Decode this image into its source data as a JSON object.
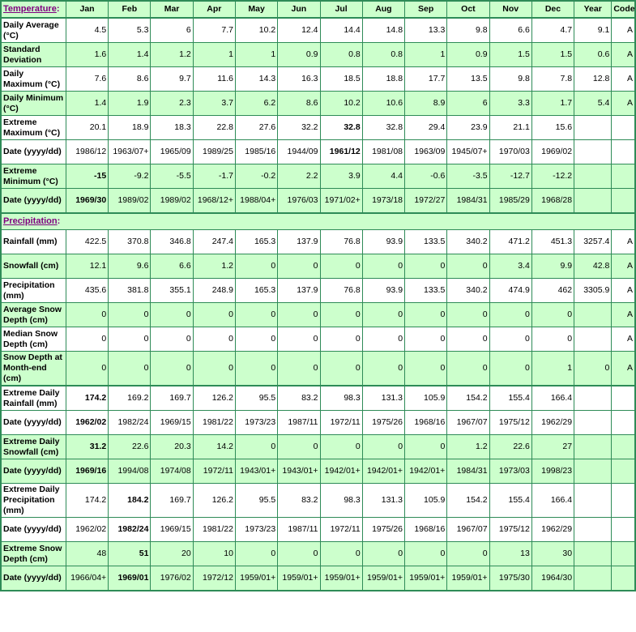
{
  "colors": {
    "cell_green": "#CCFFCC",
    "border_green": "#2E8B57",
    "label_blue": "#0000CC",
    "section_purple": "#800080",
    "value_black": "#000000"
  },
  "header": {
    "temperature_section": {
      "link_text": "Temperature",
      "colon": ":"
    },
    "precipitation_section": {
      "link_text": "Precipitation",
      "colon": ":"
    },
    "months": [
      "Jan",
      "Feb",
      "Mar",
      "Apr",
      "May",
      "Jun",
      "Jul",
      "Aug",
      "Sep",
      "Oct",
      "Nov",
      "Dec"
    ],
    "year": "Year",
    "code": "Code"
  },
  "temperature_rows": [
    {
      "label": "Daily Average (°C)",
      "bg": "w",
      "bold": [],
      "values": [
        "4.5",
        "5.3",
        "6",
        "7.7",
        "10.2",
        "12.4",
        "14.4",
        "14.8",
        "13.3",
        "9.8",
        "6.6",
        "4.7",
        "9.1",
        "A"
      ]
    },
    {
      "label": "Standard Deviation",
      "bg": "g",
      "bold": [],
      "values": [
        "1.6",
        "1.4",
        "1.2",
        "1",
        "1",
        "0.9",
        "0.8",
        "0.8",
        "1",
        "0.9",
        "1.5",
        "1.5",
        "0.6",
        "A"
      ]
    },
    {
      "label": "Daily Maximum (°C)",
      "bg": "w",
      "bold": [],
      "values": [
        "7.6",
        "8.6",
        "9.7",
        "11.6",
        "14.3",
        "16.3",
        "18.5",
        "18.8",
        "17.7",
        "13.5",
        "9.8",
        "7.8",
        "12.8",
        "A"
      ]
    },
    {
      "label": "Daily Minimum (°C)",
      "bg": "g",
      "bold": [],
      "values": [
        "1.4",
        "1.9",
        "2.3",
        "3.7",
        "6.2",
        "8.6",
        "10.2",
        "10.6",
        "8.9",
        "6",
        "3.3",
        "1.7",
        "5.4",
        "A"
      ]
    },
    {
      "label": "Extreme Maximum (°C)",
      "bg": "w",
      "bold": [
        6
      ],
      "values": [
        "20.1",
        "18.9",
        "18.3",
        "22.8",
        "27.6",
        "32.2",
        "32.8",
        "32.8",
        "29.4",
        "23.9",
        "21.1",
        "15.6",
        "",
        ""
      ]
    },
    {
      "label": "Date (yyyy/dd)",
      "bg": "w",
      "bold": [
        6
      ],
      "values": [
        "1986/12",
        "1963/07+",
        "1965/09",
        "1989/25",
        "1985/16",
        "1944/09",
        "1961/12",
        "1981/08",
        "1963/09",
        "1945/07+",
        "1970/03",
        "1969/02",
        "",
        ""
      ]
    },
    {
      "label": "Extreme Minimum (°C)",
      "bg": "g",
      "bold": [
        0
      ],
      "values": [
        "-15",
        "-9.2",
        "-5.5",
        "-1.7",
        "-0.2",
        "2.2",
        "3.9",
        "4.4",
        "-0.6",
        "-3.5",
        "-12.7",
        "-12.2",
        "",
        ""
      ]
    },
    {
      "label": "Date (yyyy/dd)",
      "bg": "g",
      "bold": [
        0
      ],
      "values": [
        "1969/30",
        "1989/02",
        "1989/02",
        "1968/12+",
        "1988/04+",
        "1976/03",
        "1971/02+",
        "1973/18",
        "1972/27",
        "1984/31",
        "1985/29",
        "1968/28",
        "",
        ""
      ]
    }
  ],
  "precipitation_rows": [
    {
      "label": "Rainfall (mm)",
      "bg": "w",
      "bold": [],
      "values": [
        "422.5",
        "370.8",
        "346.8",
        "247.4",
        "165.3",
        "137.9",
        "76.8",
        "93.9",
        "133.5",
        "340.2",
        "471.2",
        "451.3",
        "3257.4",
        "A"
      ]
    },
    {
      "label": "Snowfall (cm)",
      "bg": "g",
      "bold": [],
      "values": [
        "12.1",
        "9.6",
        "6.6",
        "1.2",
        "0",
        "0",
        "0",
        "0",
        "0",
        "0",
        "3.4",
        "9.9",
        "42.8",
        "A"
      ]
    },
    {
      "label": "Precipitation (mm)",
      "bg": "w",
      "bold": [],
      "values": [
        "435.6",
        "381.8",
        "355.1",
        "248.9",
        "165.3",
        "137.9",
        "76.8",
        "93.9",
        "133.5",
        "340.2",
        "474.9",
        "462",
        "3305.9",
        "A"
      ]
    },
    {
      "label": "Average Snow Depth (cm)",
      "bg": "g",
      "bold": [],
      "values": [
        "0",
        "0",
        "0",
        "0",
        "0",
        "0",
        "0",
        "0",
        "0",
        "0",
        "0",
        "0",
        "",
        "A"
      ]
    },
    {
      "label": "Median Snow Depth (cm)",
      "bg": "w",
      "bold": [],
      "values": [
        "0",
        "0",
        "0",
        "0",
        "0",
        "0",
        "0",
        "0",
        "0",
        "0",
        "0",
        "0",
        "",
        "A"
      ]
    },
    {
      "label": "Snow Depth at Month-end (cm)",
      "bg": "g",
      "bold": [],
      "values": [
        "0",
        "0",
        "0",
        "0",
        "0",
        "0",
        "0",
        "0",
        "0",
        "0",
        "0",
        "1",
        "0",
        "A"
      ]
    }
  ],
  "extreme_rows": [
    {
      "label": "Extreme Daily Rainfall (mm)",
      "bg": "w",
      "bold": [
        0
      ],
      "values": [
        "174.2",
        "169.2",
        "169.7",
        "126.2",
        "95.5",
        "83.2",
        "98.3",
        "131.3",
        "105.9",
        "154.2",
        "155.4",
        "166.4",
        "",
        ""
      ]
    },
    {
      "label": "Date (yyyy/dd)",
      "bg": "w",
      "bold": [
        0
      ],
      "values": [
        "1962/02",
        "1982/24",
        "1969/15",
        "1981/22",
        "1973/23",
        "1987/11",
        "1972/11",
        "1975/26",
        "1968/16",
        "1967/07",
        "1975/12",
        "1962/29",
        "",
        ""
      ]
    },
    {
      "label": "Extreme Daily Snowfall (cm)",
      "bg": "g",
      "bold": [
        0
      ],
      "values": [
        "31.2",
        "22.6",
        "20.3",
        "14.2",
        "0",
        "0",
        "0",
        "0",
        "0",
        "1.2",
        "22.6",
        "27",
        "",
        ""
      ]
    },
    {
      "label": "Date (yyyy/dd)",
      "bg": "g",
      "bold": [
        0
      ],
      "values": [
        "1969/16",
        "1994/08",
        "1974/08",
        "1972/11",
        "1943/01+",
        "1943/01+",
        "1942/01+",
        "1942/01+",
        "1942/01+",
        "1984/31",
        "1973/03",
        "1998/23",
        "",
        ""
      ]
    },
    {
      "label": "Extreme Daily Precipitation (mm)",
      "bg": "w",
      "bold": [
        1
      ],
      "values": [
        "174.2",
        "184.2",
        "169.7",
        "126.2",
        "95.5",
        "83.2",
        "98.3",
        "131.3",
        "105.9",
        "154.2",
        "155.4",
        "166.4",
        "",
        ""
      ]
    },
    {
      "label": "Date (yyyy/dd)",
      "bg": "w",
      "bold": [
        1
      ],
      "values": [
        "1962/02",
        "1982/24",
        "1969/15",
        "1981/22",
        "1973/23",
        "1987/11",
        "1972/11",
        "1975/26",
        "1968/16",
        "1967/07",
        "1975/12",
        "1962/29",
        "",
        ""
      ]
    },
    {
      "label": "Extreme Snow Depth (cm)",
      "bg": "g",
      "bold": [
        1
      ],
      "values": [
        "48",
        "51",
        "20",
        "10",
        "0",
        "0",
        "0",
        "0",
        "0",
        "0",
        "13",
        "30",
        "",
        ""
      ]
    },
    {
      "label": "Date (yyyy/dd)",
      "bg": "g",
      "bold": [
        1
      ],
      "values": [
        "1966/04+",
        "1969/01",
        "1976/02",
        "1972/12",
        "1959/01+",
        "1959/01+",
        "1959/01+",
        "1959/01+",
        "1959/01+",
        "1959/01+",
        "1975/30",
        "1964/30",
        "",
        ""
      ]
    }
  ]
}
